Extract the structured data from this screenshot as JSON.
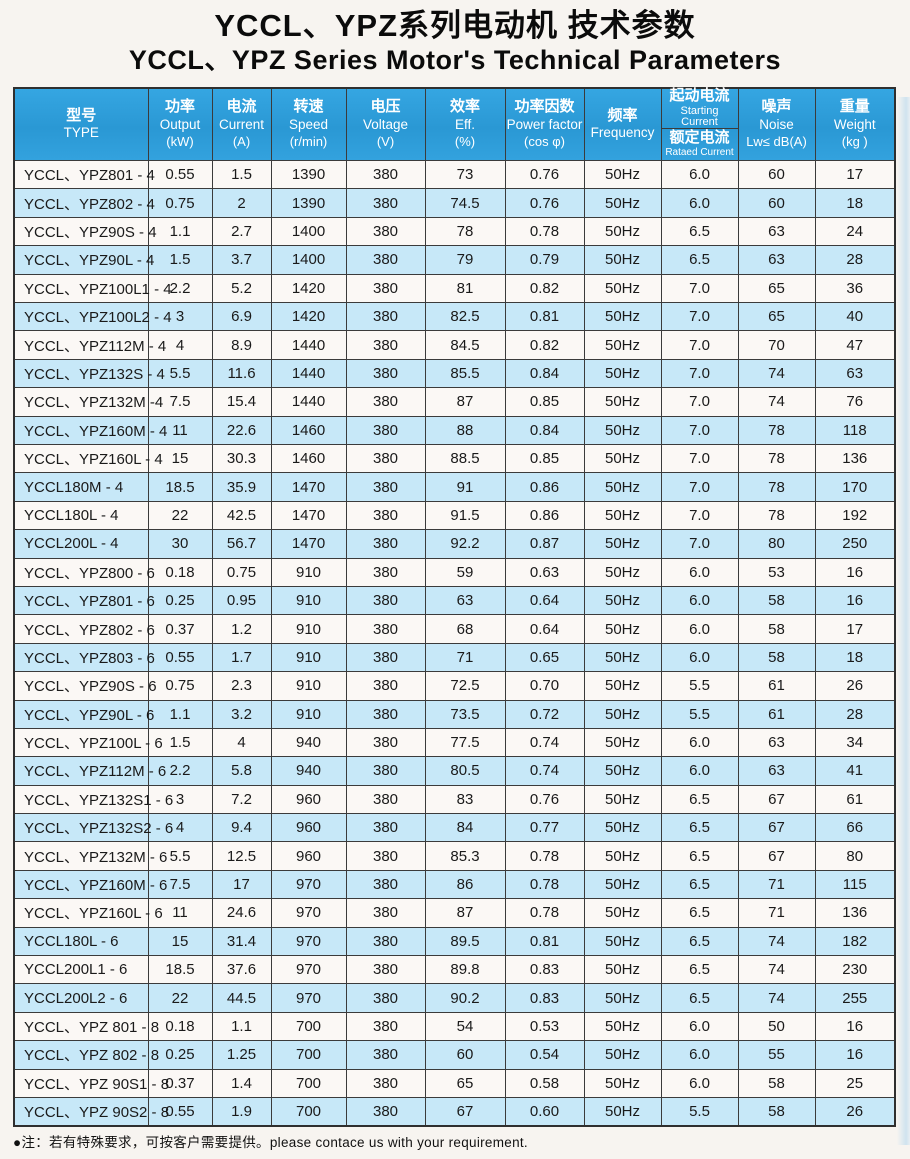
{
  "page": {
    "title_zh": "YCCL、YPZ系列电动机 技术参数",
    "title_en": "YCCL、YPZ  Series Motor's Technical  Parameters",
    "footnote": "●注：若有特殊要求，可按客户需要提供。please contace us with your requirement."
  },
  "colors": {
    "header_bg": "#2E9FDB",
    "row_alt_bg": "#C7E8F8",
    "row_bg": "#FBF8F5",
    "grid": "#3B3B3B",
    "header_text": "#FFFFFF"
  },
  "table": {
    "headers": {
      "type_zh": "型号",
      "type_en": "TYPE",
      "output_zh": "功率",
      "output_en": "Output",
      "output_unit": "(kW)",
      "current_zh": "电流",
      "current_en": "Current",
      "current_unit": "(A)",
      "speed_zh": "转速",
      "speed_en": "Speed",
      "speed_unit": "(r/min)",
      "voltage_zh": "电压",
      "voltage_en": "Voltage",
      "voltage_unit": "(V)",
      "eff_zh": "效率",
      "eff_en": "Eff.",
      "eff_unit": "(%)",
      "pf_zh": "功率因数",
      "pf_en": "Power factor",
      "pf_unit": "(cos φ)",
      "freq_zh": "频率",
      "freq_en": "Frequency",
      "start_zh": "起动电流",
      "start_en": "Starting Current",
      "rated_zh": "额定电流",
      "rated_en": "Rataed Current",
      "noise_zh": "噪声",
      "noise_en": "Noise",
      "noise_unit": "Lw≤ dB(A)",
      "weight_zh": "重量",
      "weight_en": "Weight",
      "weight_unit": "(kg )"
    },
    "rows": [
      [
        "YCCL、YPZ801 - 4",
        "0.55",
        "1.5",
        "1390",
        "380",
        "73",
        "0.76",
        "50Hz",
        "6.0",
        "60",
        "17"
      ],
      [
        "YCCL、YPZ802 - 4",
        "0.75",
        "2",
        "1390",
        "380",
        "74.5",
        "0.76",
        "50Hz",
        "6.0",
        "60",
        "18"
      ],
      [
        "YCCL、YPZ90S - 4",
        "1.1",
        "2.7",
        "1400",
        "380",
        "78",
        "0.78",
        "50Hz",
        "6.5",
        "63",
        "24"
      ],
      [
        "YCCL、YPZ90L - 4",
        "1.5",
        "3.7",
        "1400",
        "380",
        "79",
        "0.79",
        "50Hz",
        "6.5",
        "63",
        "28"
      ],
      [
        "YCCL、YPZ100L1 - 4",
        "2.2",
        "5.2",
        "1420",
        "380",
        "81",
        "0.82",
        "50Hz",
        "7.0",
        "65",
        "36"
      ],
      [
        "YCCL、YPZ100L2 - 4",
        "3",
        "6.9",
        "1420",
        "380",
        "82.5",
        "0.81",
        "50Hz",
        "7.0",
        "65",
        "40"
      ],
      [
        "YCCL、YPZ112M - 4",
        "4",
        "8.9",
        "1440",
        "380",
        "84.5",
        "0.82",
        "50Hz",
        "7.0",
        "70",
        "47"
      ],
      [
        "YCCL、YPZ132S - 4",
        "5.5",
        "11.6",
        "1440",
        "380",
        "85.5",
        "0.84",
        "50Hz",
        "7.0",
        "74",
        "63"
      ],
      [
        "YCCL、YPZ132M -4",
        "7.5",
        "15.4",
        "1440",
        "380",
        "87",
        "0.85",
        "50Hz",
        "7.0",
        "74",
        "76"
      ],
      [
        "YCCL、YPZ160M - 4",
        "11",
        "22.6",
        "1460",
        "380",
        "88",
        "0.84",
        "50Hz",
        "7.0",
        "78",
        "118"
      ],
      [
        "YCCL、YPZ160L - 4",
        "15",
        "30.3",
        "1460",
        "380",
        "88.5",
        "0.85",
        "50Hz",
        "7.0",
        "78",
        "136"
      ],
      [
        "YCCL180M - 4",
        "18.5",
        "35.9",
        "1470",
        "380",
        "91",
        "0.86",
        "50Hz",
        "7.0",
        "78",
        "170"
      ],
      [
        "YCCL180L - 4",
        "22",
        "42.5",
        "1470",
        "380",
        "91.5",
        "0.86",
        "50Hz",
        "7.0",
        "78",
        "192"
      ],
      [
        "YCCL200L - 4",
        "30",
        "56.7",
        "1470",
        "380",
        "92.2",
        "0.87",
        "50Hz",
        "7.0",
        "80",
        "250"
      ],
      [
        "YCCL、YPZ800 - 6",
        "0.18",
        "0.75",
        "910",
        "380",
        "59",
        "0.63",
        "50Hz",
        "6.0",
        "53",
        "16"
      ],
      [
        "YCCL、YPZ801 - 6",
        "0.25",
        "0.95",
        "910",
        "380",
        "63",
        "0.64",
        "50Hz",
        "6.0",
        "58",
        "16"
      ],
      [
        "YCCL、YPZ802 - 6",
        "0.37",
        "1.2",
        "910",
        "380",
        "68",
        "0.64",
        "50Hz",
        "6.0",
        "58",
        "17"
      ],
      [
        "YCCL、YPZ803 - 6",
        "0.55",
        "1.7",
        "910",
        "380",
        "71",
        "0.65",
        "50Hz",
        "6.0",
        "58",
        "18"
      ],
      [
        "YCCL、YPZ90S - 6",
        "0.75",
        "2.3",
        "910",
        "380",
        "72.5",
        "0.70",
        "50Hz",
        "5.5",
        "61",
        "26"
      ],
      [
        "YCCL、YPZ90L - 6",
        "1.1",
        "3.2",
        "910",
        "380",
        "73.5",
        "0.72",
        "50Hz",
        "5.5",
        "61",
        "28"
      ],
      [
        "YCCL、YPZ100L - 6",
        "1.5",
        "4",
        "940",
        "380",
        "77.5",
        "0.74",
        "50Hz",
        "6.0",
        "63",
        "34"
      ],
      [
        "YCCL、YPZ112M - 6",
        "2.2",
        "5.8",
        "940",
        "380",
        "80.5",
        "0.74",
        "50Hz",
        "6.0",
        "63",
        "41"
      ],
      [
        "YCCL、YPZ132S1 - 6",
        "3",
        "7.2",
        "960",
        "380",
        "83",
        "0.76",
        "50Hz",
        "6.5",
        "67",
        "61"
      ],
      [
        "YCCL、YPZ132S2 - 6",
        "4",
        "9.4",
        "960",
        "380",
        "84",
        "0.77",
        "50Hz",
        "6.5",
        "67",
        "66"
      ],
      [
        "YCCL、YPZ132M - 6",
        "5.5",
        "12.5",
        "960",
        "380",
        "85.3",
        "0.78",
        "50Hz",
        "6.5",
        "67",
        "80"
      ],
      [
        "YCCL、YPZ160M - 6",
        "7.5",
        "17",
        "970",
        "380",
        "86",
        "0.78",
        "50Hz",
        "6.5",
        "71",
        "115"
      ],
      [
        "YCCL、YPZ160L - 6",
        "11",
        "24.6",
        "970",
        "380",
        "87",
        "0.78",
        "50Hz",
        "6.5",
        "71",
        "136"
      ],
      [
        "YCCL180L - 6",
        "15",
        "31.4",
        "970",
        "380",
        "89.5",
        "0.81",
        "50Hz",
        "6.5",
        "74",
        "182"
      ],
      [
        "YCCL200L1 - 6",
        "18.5",
        "37.6",
        "970",
        "380",
        "89.8",
        "0.83",
        "50Hz",
        "6.5",
        "74",
        "230"
      ],
      [
        "YCCL200L2 - 6",
        "22",
        "44.5",
        "970",
        "380",
        "90.2",
        "0.83",
        "50Hz",
        "6.5",
        "74",
        "255"
      ],
      [
        "YCCL、YPZ 801 - 8",
        "0.18",
        "1.1",
        "700",
        "380",
        "54",
        "0.53",
        "50Hz",
        "6.0",
        "50",
        "16"
      ],
      [
        "YCCL、YPZ 802 - 8",
        "0.25",
        "1.25",
        "700",
        "380",
        "60",
        "0.54",
        "50Hz",
        "6.0",
        "55",
        "16"
      ],
      [
        "YCCL、YPZ 90S1 - 8",
        "0.37",
        "1.4",
        "700",
        "380",
        "65",
        "0.58",
        "50Hz",
        "6.0",
        "58",
        "25"
      ],
      [
        "YCCL、YPZ 90S2 - 8",
        "0.55",
        "1.9",
        "700",
        "380",
        "67",
        "0.60",
        "50Hz",
        "5.5",
        "58",
        "26"
      ]
    ]
  }
}
